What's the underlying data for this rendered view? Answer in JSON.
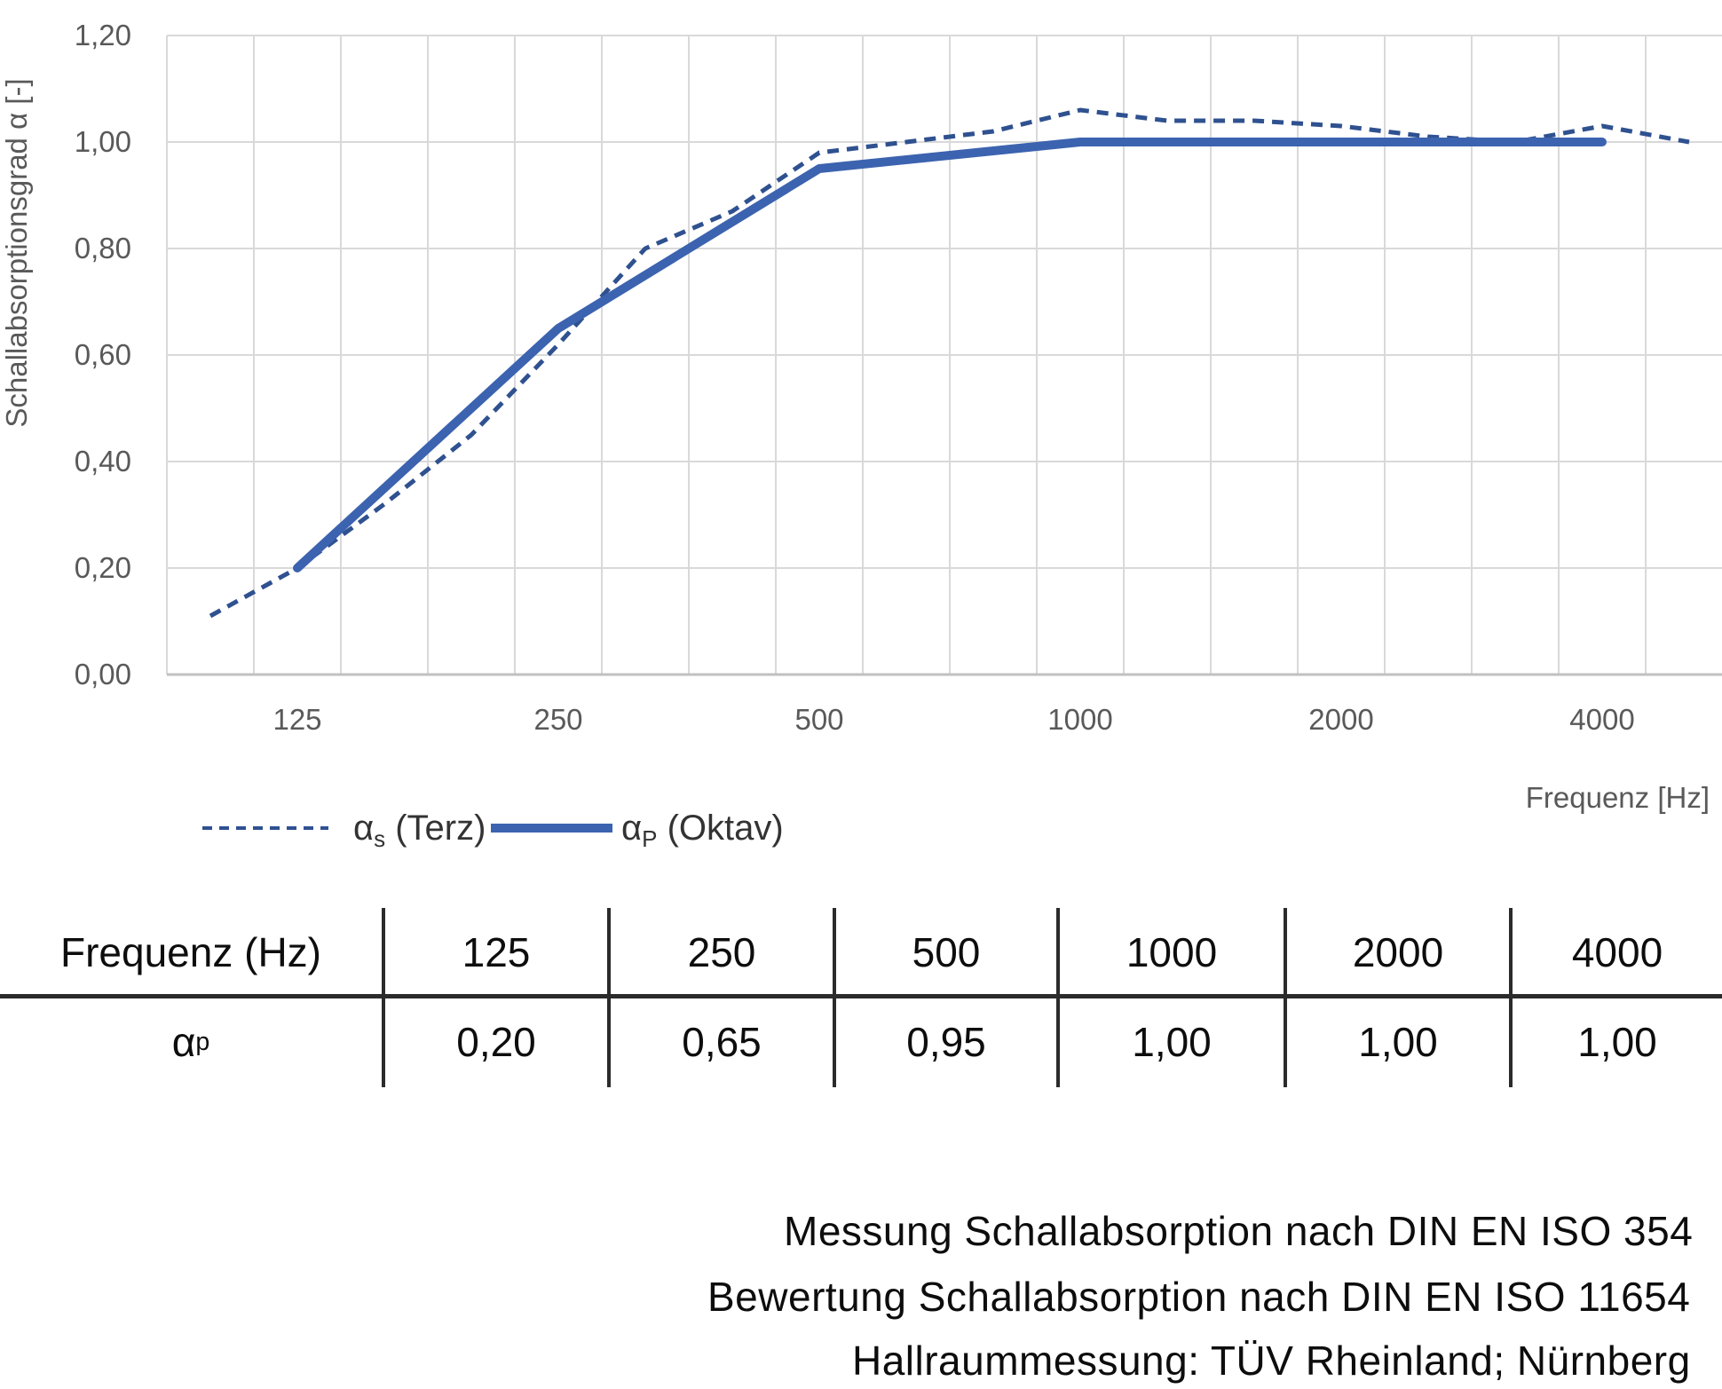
{
  "chart": {
    "y_axis_title": "Schallabsorptionsgrad α [-]",
    "x_axis_title": "Frequenz [Hz]",
    "y_tick_labels": [
      "1,20",
      "1,00",
      "0,80",
      "0,60",
      "0,40",
      "0,20",
      "0,00"
    ],
    "x_tick_labels": [
      "125",
      "250",
      "500",
      "1000",
      "2000",
      "4000"
    ],
    "legend": [
      {
        "base": "α",
        "sub": "s",
        "rest": " (Terz)",
        "style": "dashed"
      },
      {
        "base": "α",
        "sub": "P",
        "rest": " (Oktav)",
        "style": "solid"
      }
    ],
    "colors": {
      "solid_line": "#3C63AF",
      "dashed_line": "#2F5190",
      "grid": "#D9D9D9",
      "axis_line": "#C0C0C0",
      "axis_text": "#595959",
      "legend_text": "#333333"
    }
  },
  "chart_data": {
    "type": "line",
    "x_scale": "third-octave categorical (log frequency)",
    "categories": [
      100,
      125,
      160,
      200,
      250,
      315,
      400,
      500,
      630,
      800,
      1000,
      1250,
      1600,
      2000,
      2500,
      3150,
      4000,
      5000
    ],
    "series": [
      {
        "name": "αs (Terz)",
        "style": "dashed",
        "x": [
          100,
          125,
          160,
          200,
          250,
          315,
          400,
          500,
          630,
          800,
          1000,
          1250,
          1600,
          2000,
          2500,
          3150,
          4000,
          5000
        ],
        "values": [
          0.11,
          0.2,
          0.32,
          0.45,
          0.62,
          0.8,
          0.87,
          0.98,
          1.0,
          1.02,
          1.06,
          1.04,
          1.04,
          1.03,
          1.01,
          1.0,
          1.03,
          1.0
        ]
      },
      {
        "name": "αP (Oktav)",
        "style": "solid",
        "x": [
          125,
          250,
          500,
          1000,
          2000,
          4000
        ],
        "values": [
          0.2,
          0.65,
          0.95,
          1.0,
          1.0,
          1.0
        ]
      }
    ],
    "title": "",
    "xlabel": "Frequenz [Hz]",
    "ylabel": "Schallabsorptionsgrad α [-]",
    "ylim": [
      0.0,
      1.2
    ],
    "y_tick_step": 0.2,
    "x_ticks_labeled": [
      125,
      250,
      500,
      1000,
      2000,
      4000
    ],
    "grid": true,
    "legend_position": "bottom-left"
  },
  "table": {
    "header_label": "Frequenz (Hz)",
    "row_label_base": "α",
    "row_label_sub": "p",
    "columns": [
      "125",
      "250",
      "500",
      "1000",
      "2000",
      "4000"
    ],
    "values": [
      "0,20",
      "0,65",
      "0,95",
      "1,00",
      "1,00",
      "1,00"
    ]
  },
  "footer": {
    "lines": [
      "Messung Schallabsorption nach DIN EN ISO 354",
      "Bewertung Schallabsorption nach DIN EN ISO 11654",
      "Hallraummessung: TÜV Rheinland; Nürnberg"
    ]
  }
}
